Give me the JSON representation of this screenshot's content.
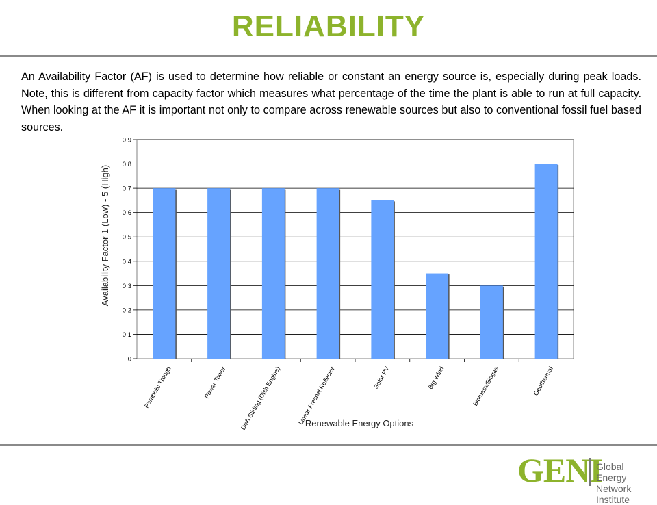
{
  "header": {
    "title": "RELIABILITY"
  },
  "intro": {
    "text": "An Availability Factor (AF) is used to determine how reliable or constant an energy source is, especially during peak loads. Note, this is different from capacity factor which measures what percentage of the time the plant is able to run at full capacity. When looking at the AF it is important not only to compare across renewable sources but also to conventional fossil fuel based sources."
  },
  "chart_data": {
    "type": "bar",
    "categories": [
      "Parabolic Trough",
      "Power Tower",
      "Dish Stirling (Dish Engine)",
      "Linear Fresnel Reflector",
      "Solar PV",
      "Big Wind",
      "Biomass/Biogas",
      "Geothermal"
    ],
    "values": [
      0.7,
      0.7,
      0.7,
      0.7,
      0.65,
      0.35,
      0.3,
      0.8
    ],
    "title": "",
    "xlabel": "Renewable Energy Options",
    "ylabel": "Availability Factor 1 (Low) - 5 (High)",
    "ylim": [
      0,
      0.9
    ],
    "yticks": [
      "0",
      "0.1",
      "0.2",
      "0.3",
      "0.4",
      "0.5",
      "0.6",
      "0.7",
      "0.8",
      "0.9"
    ],
    "grid": true,
    "legend": "none",
    "bar_color": "#66a3ff"
  },
  "footer": {
    "logo_text": "GENI",
    "logo_sub_1": "Global Energy",
    "logo_sub_2": "Network Institute"
  },
  "colors": {
    "title": "#8db32c",
    "rule": "#8a8a8a"
  }
}
